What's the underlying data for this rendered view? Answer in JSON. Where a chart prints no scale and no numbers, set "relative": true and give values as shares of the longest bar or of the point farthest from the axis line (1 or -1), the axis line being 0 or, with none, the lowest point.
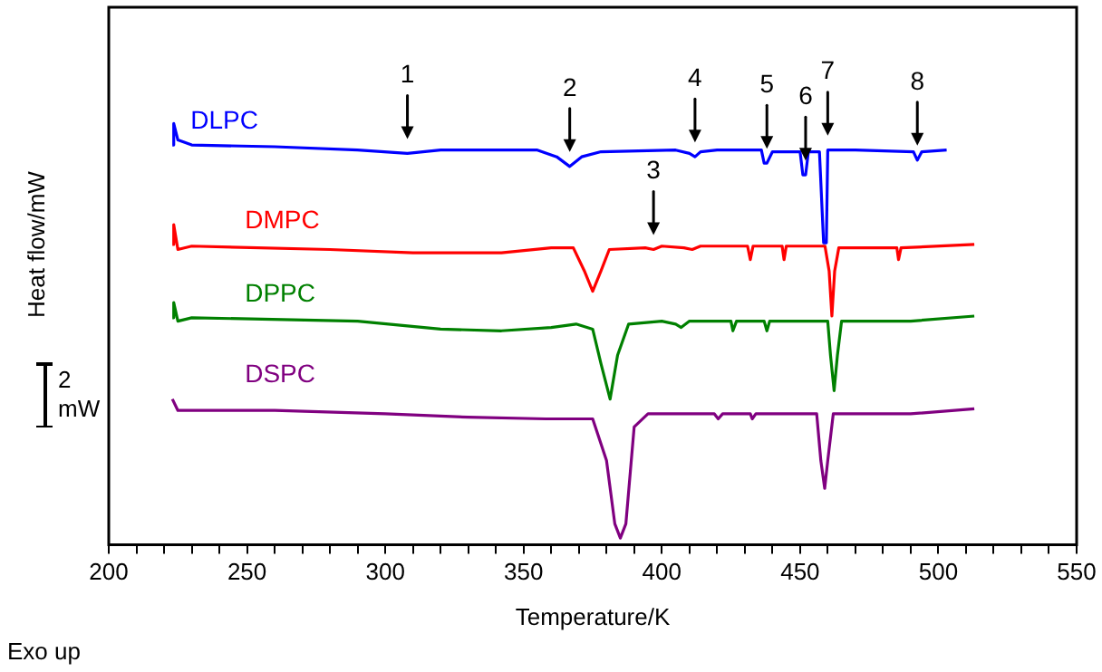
{
  "chart_data": {
    "type": "line",
    "relative": true,
    "xlabel": "Temperature/K",
    "ylabel": "Heat flow/mW",
    "xlim": [
      200,
      550
    ],
    "xticks": [
      200,
      {
        "value": 210,
        "label": null
      },
      {
        "value": 220,
        "label": null
      },
      {
        "value": 230,
        "label": null
      },
      {
        "value": 240,
        "label": null
      },
      250,
      {
        "value": 260,
        "label": null
      },
      {
        "value": 270,
        "label": null
      },
      {
        "value": 280,
        "label": null
      },
      {
        "value": 290,
        "label": null
      },
      300,
      {
        "value": 310,
        "label": null
      },
      {
        "value": 320,
        "label": null
      },
      {
        "value": 330,
        "label": null
      },
      {
        "value": 340,
        "label": null
      },
      350,
      {
        "value": 360,
        "label": null
      },
      {
        "value": 370,
        "label": null
      },
      {
        "value": 380,
        "label": null
      },
      {
        "value": 390,
        "label": null
      },
      400,
      {
        "value": 410,
        "label": null
      },
      {
        "value": 420,
        "label": null
      },
      {
        "value": 430,
        "label": null
      },
      {
        "value": 440,
        "label": null
      },
      450,
      {
        "value": 460,
        "label": null
      },
      {
        "value": 470,
        "label": null
      },
      {
        "value": 480,
        "label": null
      },
      {
        "value": 490,
        "label": null
      },
      500,
      {
        "value": 510,
        "label": null
      },
      {
        "value": 520,
        "label": null
      },
      {
        "value": 530,
        "label": null
      },
      {
        "value": 540,
        "label": null
      },
      550
    ],
    "grid": false,
    "legend": false,
    "marker": "none",
    "line_style": "solid",
    "series": [
      {
        "name": "DLPC",
        "color": "#0000ff",
        "x": [
          223,
          223.5,
          225,
          230,
          260,
          290,
          308,
          320,
          355,
          362,
          366.7,
          371,
          378,
          405,
          410,
          412,
          414,
          420,
          436,
          437,
          438,
          440,
          450,
          451,
          452,
          453,
          457,
          458.5,
          459.5,
          460,
          470,
          491,
          492.4,
          494,
          503
        ],
        "values": [
          0.949,
          1.0,
          0.961,
          0.949,
          0.945,
          0.937,
          0.929,
          0.937,
          0.937,
          0.921,
          0.898,
          0.921,
          0.933,
          0.937,
          0.929,
          0.921,
          0.933,
          0.937,
          0.937,
          0.906,
          0.906,
          0.933,
          0.933,
          0.878,
          0.878,
          0.933,
          0.933,
          0.717,
          0.717,
          0.937,
          0.937,
          0.933,
          0.913,
          0.933,
          0.937
        ]
      },
      {
        "name": "DMPC",
        "color": "#ff0000",
        "x": [
          223,
          223.5,
          225,
          230,
          280,
          310,
          342,
          360,
          368,
          372,
          375,
          378,
          381,
          394,
          397,
          400,
          408,
          411,
          414,
          431,
          432,
          433,
          443.5,
          444.2,
          445,
          459,
          460.5,
          461.5,
          462.5,
          464,
          485,
          485.6,
          486.5,
          513
        ],
        "values": [
          0.713,
          0.76,
          0.701,
          0.709,
          0.701,
          0.693,
          0.693,
          0.705,
          0.705,
          0.65,
          0.602,
          0.65,
          0.701,
          0.705,
          0.701,
          0.709,
          0.705,
          0.701,
          0.709,
          0.709,
          0.677,
          0.709,
          0.709,
          0.677,
          0.709,
          0.709,
          0.65,
          0.543,
          0.65,
          0.705,
          0.705,
          0.677,
          0.705,
          0.713
        ]
      },
      {
        "name": "DPPC",
        "color": "#008000",
        "x": [
          223,
          223.5,
          225,
          230,
          290,
          320,
          342,
          360,
          369,
          375,
          378,
          381.3,
          384,
          388,
          400,
          405,
          407,
          410,
          425,
          425.7,
          427,
          437,
          438,
          439,
          460,
          461,
          462.3,
          463.5,
          465,
          490,
          513
        ],
        "values": [
          0.539,
          0.575,
          0.531,
          0.539,
          0.531,
          0.512,
          0.508,
          0.516,
          0.524,
          0.512,
          0.43,
          0.346,
          0.45,
          0.524,
          0.531,
          0.524,
          0.516,
          0.531,
          0.531,
          0.508,
          0.531,
          0.531,
          0.508,
          0.531,
          0.531,
          0.45,
          0.366,
          0.45,
          0.531,
          0.531,
          0.543
        ]
      },
      {
        "name": "DSPC",
        "color": "#800080",
        "x": [
          223,
          225,
          260,
          300,
          330,
          358,
          375,
          380,
          383,
          385,
          387,
          390,
          395,
          419,
          420.4,
          422,
          432,
          432.7,
          434,
          456,
          457.5,
          458.9,
          460,
          462,
          490,
          513
        ],
        "values": [
          0.346,
          0.319,
          0.319,
          0.311,
          0.303,
          0.299,
          0.299,
          0.2,
          0.05,
          0.016,
          0.05,
          0.28,
          0.311,
          0.311,
          0.299,
          0.311,
          0.311,
          0.299,
          0.311,
          0.311,
          0.2,
          0.134,
          0.2,
          0.311,
          0.311,
          0.323
        ]
      }
    ],
    "annotations": [
      {
        "text": "1",
        "x": 308,
        "y": 0.929
      },
      {
        "text": "2",
        "x": 366.7,
        "y": 0.898
      },
      {
        "text": "3",
        "x": 397,
        "y": 0.701
      },
      {
        "text": "4",
        "x": 412,
        "y": 0.921
      },
      {
        "text": "5",
        "x": 438,
        "y": 0.906
      },
      {
        "text": "6",
        "x": 452,
        "y": 0.878
      },
      {
        "text": "7",
        "x": 460,
        "y": 0.937
      },
      {
        "text": "8",
        "x": 492.4,
        "y": 0.913
      },
      "2 mW",
      "Exo up"
    ]
  }
}
